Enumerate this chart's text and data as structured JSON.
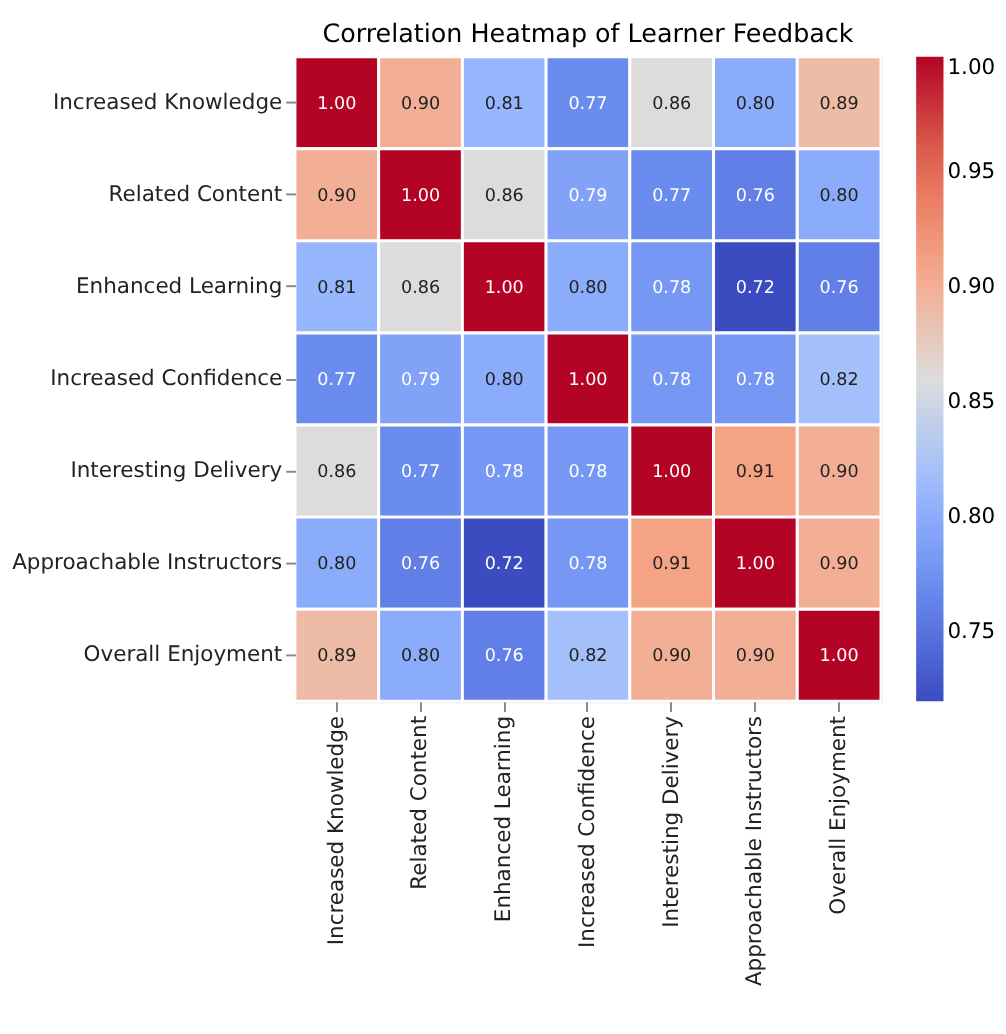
{
  "chart_data": {
    "type": "heatmap",
    "title": "Correlation Heatmap of Learner Feedback",
    "categories": [
      "Increased Knowledge",
      "Related Content",
      "Enhanced Learning",
      "Increased Confidence",
      "Interesting Delivery",
      "Approachable Instructors",
      "Overall Enjoyment"
    ],
    "y_categories": [
      "Increased Knowledge",
      "Related Content",
      "Enhanced Learning",
      "Increased Confidence",
      "Interesting Delivery",
      "Approachable Instructors",
      "Overall Enjoyment"
    ],
    "cells": [
      [
        1.0,
        0.9,
        0.81,
        0.77,
        0.86,
        0.8,
        0.89
      ],
      [
        0.9,
        1.0,
        0.86,
        0.79,
        0.77,
        0.76,
        0.8
      ],
      [
        0.81,
        0.86,
        1.0,
        0.8,
        0.78,
        0.72,
        0.76
      ],
      [
        0.77,
        0.79,
        0.8,
        1.0,
        0.78,
        0.78,
        0.82
      ],
      [
        0.86,
        0.77,
        0.78,
        0.78,
        1.0,
        0.91,
        0.9
      ],
      [
        0.8,
        0.76,
        0.72,
        0.78,
        0.91,
        1.0,
        0.9
      ],
      [
        0.89,
        0.8,
        0.76,
        0.82,
        0.9,
        0.9,
        1.0
      ]
    ],
    "cell_labels": [
      [
        "1.00",
        "0.90",
        "0.81",
        "0.77",
        "0.86",
        "0.80",
        "0.89"
      ],
      [
        "0.90",
        "1.00",
        "0.86",
        "0.79",
        "0.77",
        "0.76",
        "0.80"
      ],
      [
        "0.81",
        "0.86",
        "1.00",
        "0.80",
        "0.78",
        "0.72",
        "0.76"
      ],
      [
        "0.77",
        "0.79",
        "0.80",
        "1.00",
        "0.78",
        "0.78",
        "0.82"
      ],
      [
        "0.86",
        "0.77",
        "0.78",
        "0.78",
        "1.00",
        "0.91",
        "0.90"
      ],
      [
        "0.80",
        "0.76",
        "0.72",
        "0.78",
        "0.91",
        "1.00",
        "0.90"
      ],
      [
        "0.89",
        "0.80",
        "0.76",
        "0.82",
        "0.90",
        "0.90",
        "1.00"
      ]
    ],
    "clim": [
      0.72,
      1.0
    ],
    "cticks": [
      {
        "value": 0.75,
        "label": "0.75"
      },
      {
        "value": 0.8,
        "label": "0.80"
      },
      {
        "value": 0.85,
        "label": "0.85"
      },
      {
        "value": 0.9,
        "label": "0.90"
      },
      {
        "value": 0.95,
        "label": "0.95"
      },
      {
        "value": 1.0,
        "label": "1.00"
      }
    ]
  }
}
